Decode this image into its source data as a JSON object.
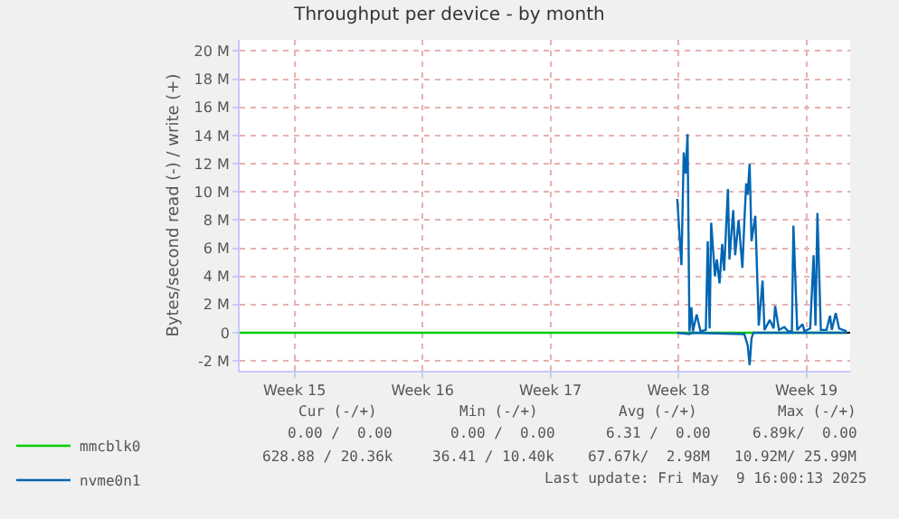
{
  "chart_data": {
    "type": "line",
    "title": "Throughput per device - by month",
    "ylabel": "Bytes/second read (-) / write (+)",
    "xlim": [
      "2025-04-07T12:00",
      "2025-05-10T21:30"
    ],
    "ylim": [
      -2.7,
      20.8
    ],
    "xticks": [
      {
        "value": "2025-04-10T12:00",
        "label": "Week 15"
      },
      {
        "value": "2025-04-17T12:00",
        "label": "Week 16"
      },
      {
        "value": "2025-04-24T12:00",
        "label": "Week 17"
      },
      {
        "value": "2025-05-01T12:00",
        "label": "Week 18"
      },
      {
        "value": "2025-05-08T12:00",
        "label": "Week 19"
      }
    ],
    "yticks": [
      {
        "value": -2,
        "label": "-2 M"
      },
      0,
      {
        "value": 2,
        "label": "2 M"
      },
      {
        "value": 4,
        "label": "4 M"
      },
      {
        "value": 6,
        "label": "6 M"
      },
      {
        "value": 8,
        "label": "8 M"
      },
      {
        "value": 10,
        "label": "10 M"
      },
      {
        "value": 12,
        "label": "12 M"
      },
      {
        "value": 14,
        "label": "14 M"
      },
      {
        "value": 16,
        "label": "16 M"
      },
      {
        "value": 18,
        "label": "18 M"
      },
      {
        "value": 20,
        "label": "20 M"
      }
    ],
    "grid": true,
    "legend": "bottom left",
    "series": [
      {
        "name": "mmcblk0",
        "color": "#00cc00",
        "x": [
          "2025-04-07T12:00",
          "2025-05-10T17:00"
        ],
        "values": [
          0,
          0
        ]
      },
      {
        "name": "nvme0n1",
        "color": "#0066b3",
        "x": [
          "2025-05-01T10:30",
          "2025-05-01T16:00",
          "2025-05-01T19:00",
          "2025-05-01T21:30",
          "2025-05-02T00:00",
          "2025-05-02T02:30",
          "2025-05-02T05:00",
          "2025-05-02T07:00",
          "2025-05-02T12:00",
          "2025-05-02T17:00",
          "2025-05-03T00:00",
          "2025-05-03T02:30",
          "2025-05-03T05:00",
          "2025-05-03T07:00",
          "2025-05-03T12:00",
          "2025-05-03T14:30",
          "2025-05-03T18:00",
          "2025-05-03T21:30",
          "2025-05-04T00:00",
          "2025-05-04T05:00",
          "2025-05-04T07:00",
          "2025-05-04T12:00",
          "2025-05-04T14:30",
          "2025-05-04T19:00",
          "2025-05-05T00:00",
          "2025-05-05T02:30",
          "2025-05-05T05:00",
          "2025-05-05T07:00",
          "2025-05-05T09:30",
          "2025-05-05T12:00",
          "2025-05-05T17:00",
          "2025-05-05T21:30",
          "2025-05-06T02:30",
          "2025-05-06T05:00",
          "2025-05-06T12:00",
          "2025-05-06T17:00",
          "2025-05-06T19:00",
          "2025-05-07T00:00",
          "2025-05-07T07:00",
          "2025-05-07T12:00",
          "2025-05-07T17:00",
          "2025-05-07T19:00",
          "2025-05-08T00:00",
          "2025-05-08T07:00",
          "2025-05-08T09:30",
          "2025-05-08T17:00",
          "2025-05-08T21:30",
          "2025-05-09T00:00",
          "2025-05-09T02:30",
          "2025-05-09T07:00",
          "2025-05-09T14:30",
          "2025-05-09T19:00",
          "2025-05-09T21:30",
          "2025-05-10T02:30",
          "2025-05-10T07:00",
          "2025-05-10T17:00"
        ],
        "values": [
          9.5,
          4.8,
          12.8,
          11.3,
          14.1,
          0.1,
          1.8,
          0.1,
          1.3,
          0.1,
          0.2,
          6.5,
          0.3,
          7.8,
          4.0,
          5.2,
          3.5,
          6.3,
          4.4,
          10.2,
          5.2,
          8.7,
          5.5,
          8.0,
          4.6,
          7.8,
          10.6,
          9.8,
          12.0,
          6.5,
          8.3,
          0.5,
          3.7,
          0.2,
          0.9,
          0.3,
          1.9,
          0.2,
          0.4,
          0.1,
          0.1,
          7.6,
          0.2,
          0.6,
          0.1,
          0.3,
          5.5,
          0.5,
          8.5,
          0.2,
          0.2,
          1.2,
          0.2,
          1.4,
          0.3,
          0.1
        ]
      },
      {
        "color": "#0066b3",
        "x": [
          "2025-05-01T10:30",
          "2025-05-02T02:30",
          "2025-05-02T05:00",
          "2025-05-05T02:30",
          "2025-05-05T07:00",
          "2025-05-05T09:30",
          "2025-05-05T12:00",
          "2025-05-05T14:30",
          "2025-05-10T17:00"
        ],
        "values": [
          0,
          -0.1,
          0,
          -0.1,
          -0.9,
          -2.3,
          -0.4,
          0,
          0
        ]
      }
    ],
    "annotations": [
      "Cur (-/+)",
      "Min (-/+)",
      "Avg (-/+)",
      "Max (-/+)",
      "0.00 /  0.00",
      "0.00 /  0.00",
      "6.31 /  0.00",
      "6.89k/  0.00",
      "628.88 / 20.36k",
      "36.41 / 10.40k",
      "67.67k/  2.98M",
      "10.92M/ 25.99M",
      "Last update: Fri May  9 16:00:13 2025"
    ]
  }
}
